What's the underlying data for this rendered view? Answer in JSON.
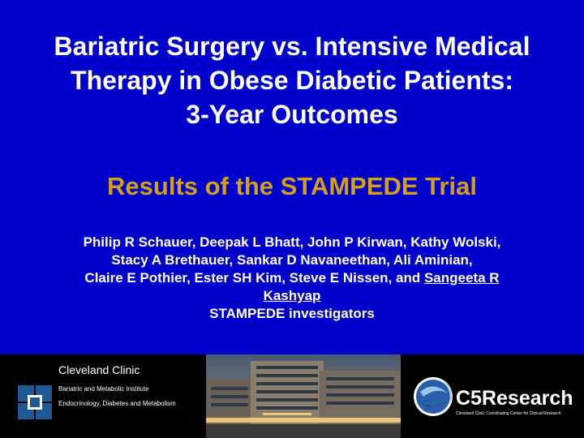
{
  "title": {
    "lines": [
      "Bariatric Surgery vs. Intensive Medical",
      "Therapy in Obese Diabetic Patients:",
      "3-Year Outcomes"
    ]
  },
  "subtitle": "Results of the STAMPEDE Trial",
  "authors": {
    "line1": "Philip R Schauer, Deepak L Bhatt, John P Kirwan, Kathy Wolski,",
    "line2": "Stacy A Brethauer, Sankar D Navaneethan, Ali Aminian,",
    "line3": "Claire E Pothier, Ester SH Kim, Steve E Nissen, and ",
    "line3_underlined": "Sangeeta R",
    "line4_underlined": "Kashyap",
    "group": "STAMPEDE investigators"
  },
  "footer": {
    "cleveland_clinic": {
      "name": "Cleveland Clinic",
      "institute_line1": "Bariatric and Metabolic Institute",
      "institute_line2": "Endocrinology, Diabetes and Metabolism",
      "logo_color": "#1f5a96"
    },
    "c5research": {
      "name": "C5Research",
      "tagline": "Cleveland Clinic Coordinating Center for Clinical Research"
    }
  },
  "colors": {
    "background": "#0000cc",
    "title": "#ffffff",
    "subtitle": "#d4a017",
    "footer": "#000000"
  }
}
